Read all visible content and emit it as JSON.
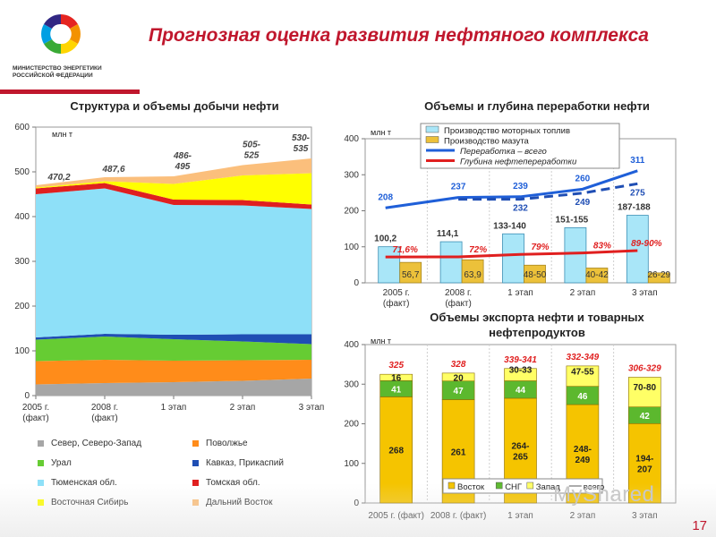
{
  "page": {
    "title": "Прогнозная оценка развития нефтяного комплекса",
    "ministry": "МИНИСТЕРСТВО ЭНЕРГЕТИКИ РОССИЙСКОЙ ФЕДЕРАЦИИ",
    "page_number": "17",
    "watermark": "MyShared",
    "colors": {
      "accent": "#c0172d"
    }
  },
  "chart_data": [
    {
      "id": "production",
      "type": "area",
      "title": "Структура и объемы добычи нефти",
      "ylabel": "млн т",
      "ylim": [
        0,
        600
      ],
      "yticks": [
        0,
        100,
        200,
        300,
        400,
        500,
        600
      ],
      "categories": [
        "2005 г. (факт)",
        "2008 г. (факт)",
        "1 этап",
        "2 этап",
        "3 этап"
      ],
      "totals": [
        "470,2",
        "487,6",
        "486-495",
        "505-525",
        "530-535"
      ],
      "series": [
        {
          "name": "Север, Северо-Запад",
          "color": "#a6a6a6",
          "values": [
            25,
            28,
            30,
            33,
            38
          ]
        },
        {
          "name": "Поволжье",
          "color": "#ff8c1a",
          "values": [
            52,
            52,
            48,
            46,
            42
          ]
        },
        {
          "name": "Урал",
          "color": "#66cc33",
          "values": [
            48,
            52,
            48,
            42,
            35
          ]
        },
        {
          "name": "Кавказ, Прикаспий",
          "color": "#1f4eb4",
          "values": [
            5,
            6,
            10,
            16,
            22
          ]
        },
        {
          "name": "Тюменская обл.",
          "color": "#8ee0f8",
          "values": [
            320,
            325,
            290,
            288,
            280
          ]
        },
        {
          "name": "Томская обл.",
          "color": "#e01f1f",
          "values": [
            13,
            12,
            12,
            12,
            10
          ]
        },
        {
          "name": "Восточная Сибирь",
          "color": "#ffff00",
          "values": [
            2,
            4,
            35,
            55,
            70
          ]
        },
        {
          "name": "Дальний Восток",
          "color": "#fbbf7c",
          "values": [
            5,
            9,
            17,
            23,
            33
          ]
        }
      ],
      "legend": [
        {
          "name": "Север, Северо-Запад",
          "color": "#a6a6a6"
        },
        {
          "name": "Поволжье",
          "color": "#ff8c1a"
        },
        {
          "name": "Урал",
          "color": "#66cc33"
        },
        {
          "name": "Кавказ, Прикаспий",
          "color": "#1f4eb4"
        },
        {
          "name": "Тюменская обл.",
          "color": "#8ee0f8"
        },
        {
          "name": "Томская обл.",
          "color": "#e01f1f"
        },
        {
          "name": "Восточная Сибирь",
          "color": "#ffff00"
        },
        {
          "name": "Дальний Восток",
          "color": "#fbbf7c"
        }
      ]
    },
    {
      "id": "refining",
      "type": "bar",
      "title": "Объемы и глубина переработки нефти",
      "ylabel": "млн т",
      "ylim": [
        0,
        400
      ],
      "yticks": [
        0,
        100,
        200,
        300,
        400
      ],
      "categories": [
        "2005 г. (факт)",
        "2008 г. (факт)",
        "1 этап",
        "2 этап",
        "3 этап"
      ],
      "series": [
        {
          "name": "Производство моторных топлив",
          "color": "#a9e6f8",
          "values": [
            100.2,
            114.1,
            136,
            153,
            187.5
          ],
          "labels": [
            "100,2",
            "114,1",
            "133-140",
            "151-155",
            "187-188"
          ]
        },
        {
          "name": "Производство мазута",
          "color": "#ecc13a",
          "values": [
            56.7,
            63.9,
            49,
            41,
            27.5
          ],
          "labels": [
            "56,7",
            "63,9",
            "48-50",
            "40-42",
            "26-29"
          ]
        },
        {
          "name": "Переработка – всего",
          "color": "#1f5fd8",
          "values": [
            208,
            237,
            239,
            260,
            311
          ],
          "labels": [
            "208",
            "237",
            "239",
            "260",
            "311"
          ]
        },
        {
          "name": "Переработка – всего",
          "color": "#1f4eb4",
          "dashed": true,
          "values": [
            null,
            232,
            232,
            249,
            275
          ],
          "labels": [
            "",
            "",
            "232",
            "249",
            "275"
          ]
        },
        {
          "name": "Глубина нефтепереработки",
          "color": "#e01f1f",
          "values": [
            71.6,
            72,
            79,
            83,
            89.5
          ],
          "labels": [
            "71,6%",
            "72%",
            "79%",
            "83%",
            "89-90%"
          ]
        }
      ],
      "legend": [
        {
          "name": "Производство моторных топлив",
          "color": "#a9e6f8",
          "kind": "box"
        },
        {
          "name": "Производство мазута",
          "color": "#ecc13a",
          "kind": "box"
        },
        {
          "name": "Переработка – всего",
          "color": "#1f5fd8",
          "kind": "line"
        },
        {
          "name": "Глубина нефтепереработки",
          "color": "#e01f1f",
          "kind": "line"
        }
      ]
    },
    {
      "id": "export",
      "type": "bar",
      "stacked": true,
      "title": "Объемы экспорта нефти и товарных нефтепродуктов",
      "ylabel": "млн т",
      "ylim": [
        0,
        400
      ],
      "yticks": [
        0,
        100,
        200,
        300,
        400
      ],
      "categories": [
        "2005 г. (факт)",
        "2008 г. (факт)",
        "1 этап",
        "2 этап",
        "3 этап"
      ],
      "totals": [
        "325",
        "328",
        "339-341",
        "332-349",
        "306-329"
      ],
      "series": [
        {
          "name": "Восток",
          "color": "#f5c400",
          "values": [
            268,
            261,
            264.5,
            248.5,
            200.5
          ],
          "labels": [
            "268",
            "261",
            "264-265",
            "248-249",
            "194-207"
          ]
        },
        {
          "name": "СНГ",
          "color": "#5cb82e",
          "values": [
            41,
            47,
            44,
            46,
            42
          ],
          "labels": [
            "41",
            "47",
            "44",
            "46",
            "42"
          ]
        },
        {
          "name": "Запад",
          "color": "#ffff66",
          "values": [
            16,
            20,
            31,
            51.5,
            75
          ],
          "labels": [
            "16",
            "20",
            "30-33",
            "47-55",
            "70-80"
          ]
        }
      ],
      "legend": [
        "Восток",
        "СНГ",
        "Запад",
        "всего"
      ]
    }
  ]
}
